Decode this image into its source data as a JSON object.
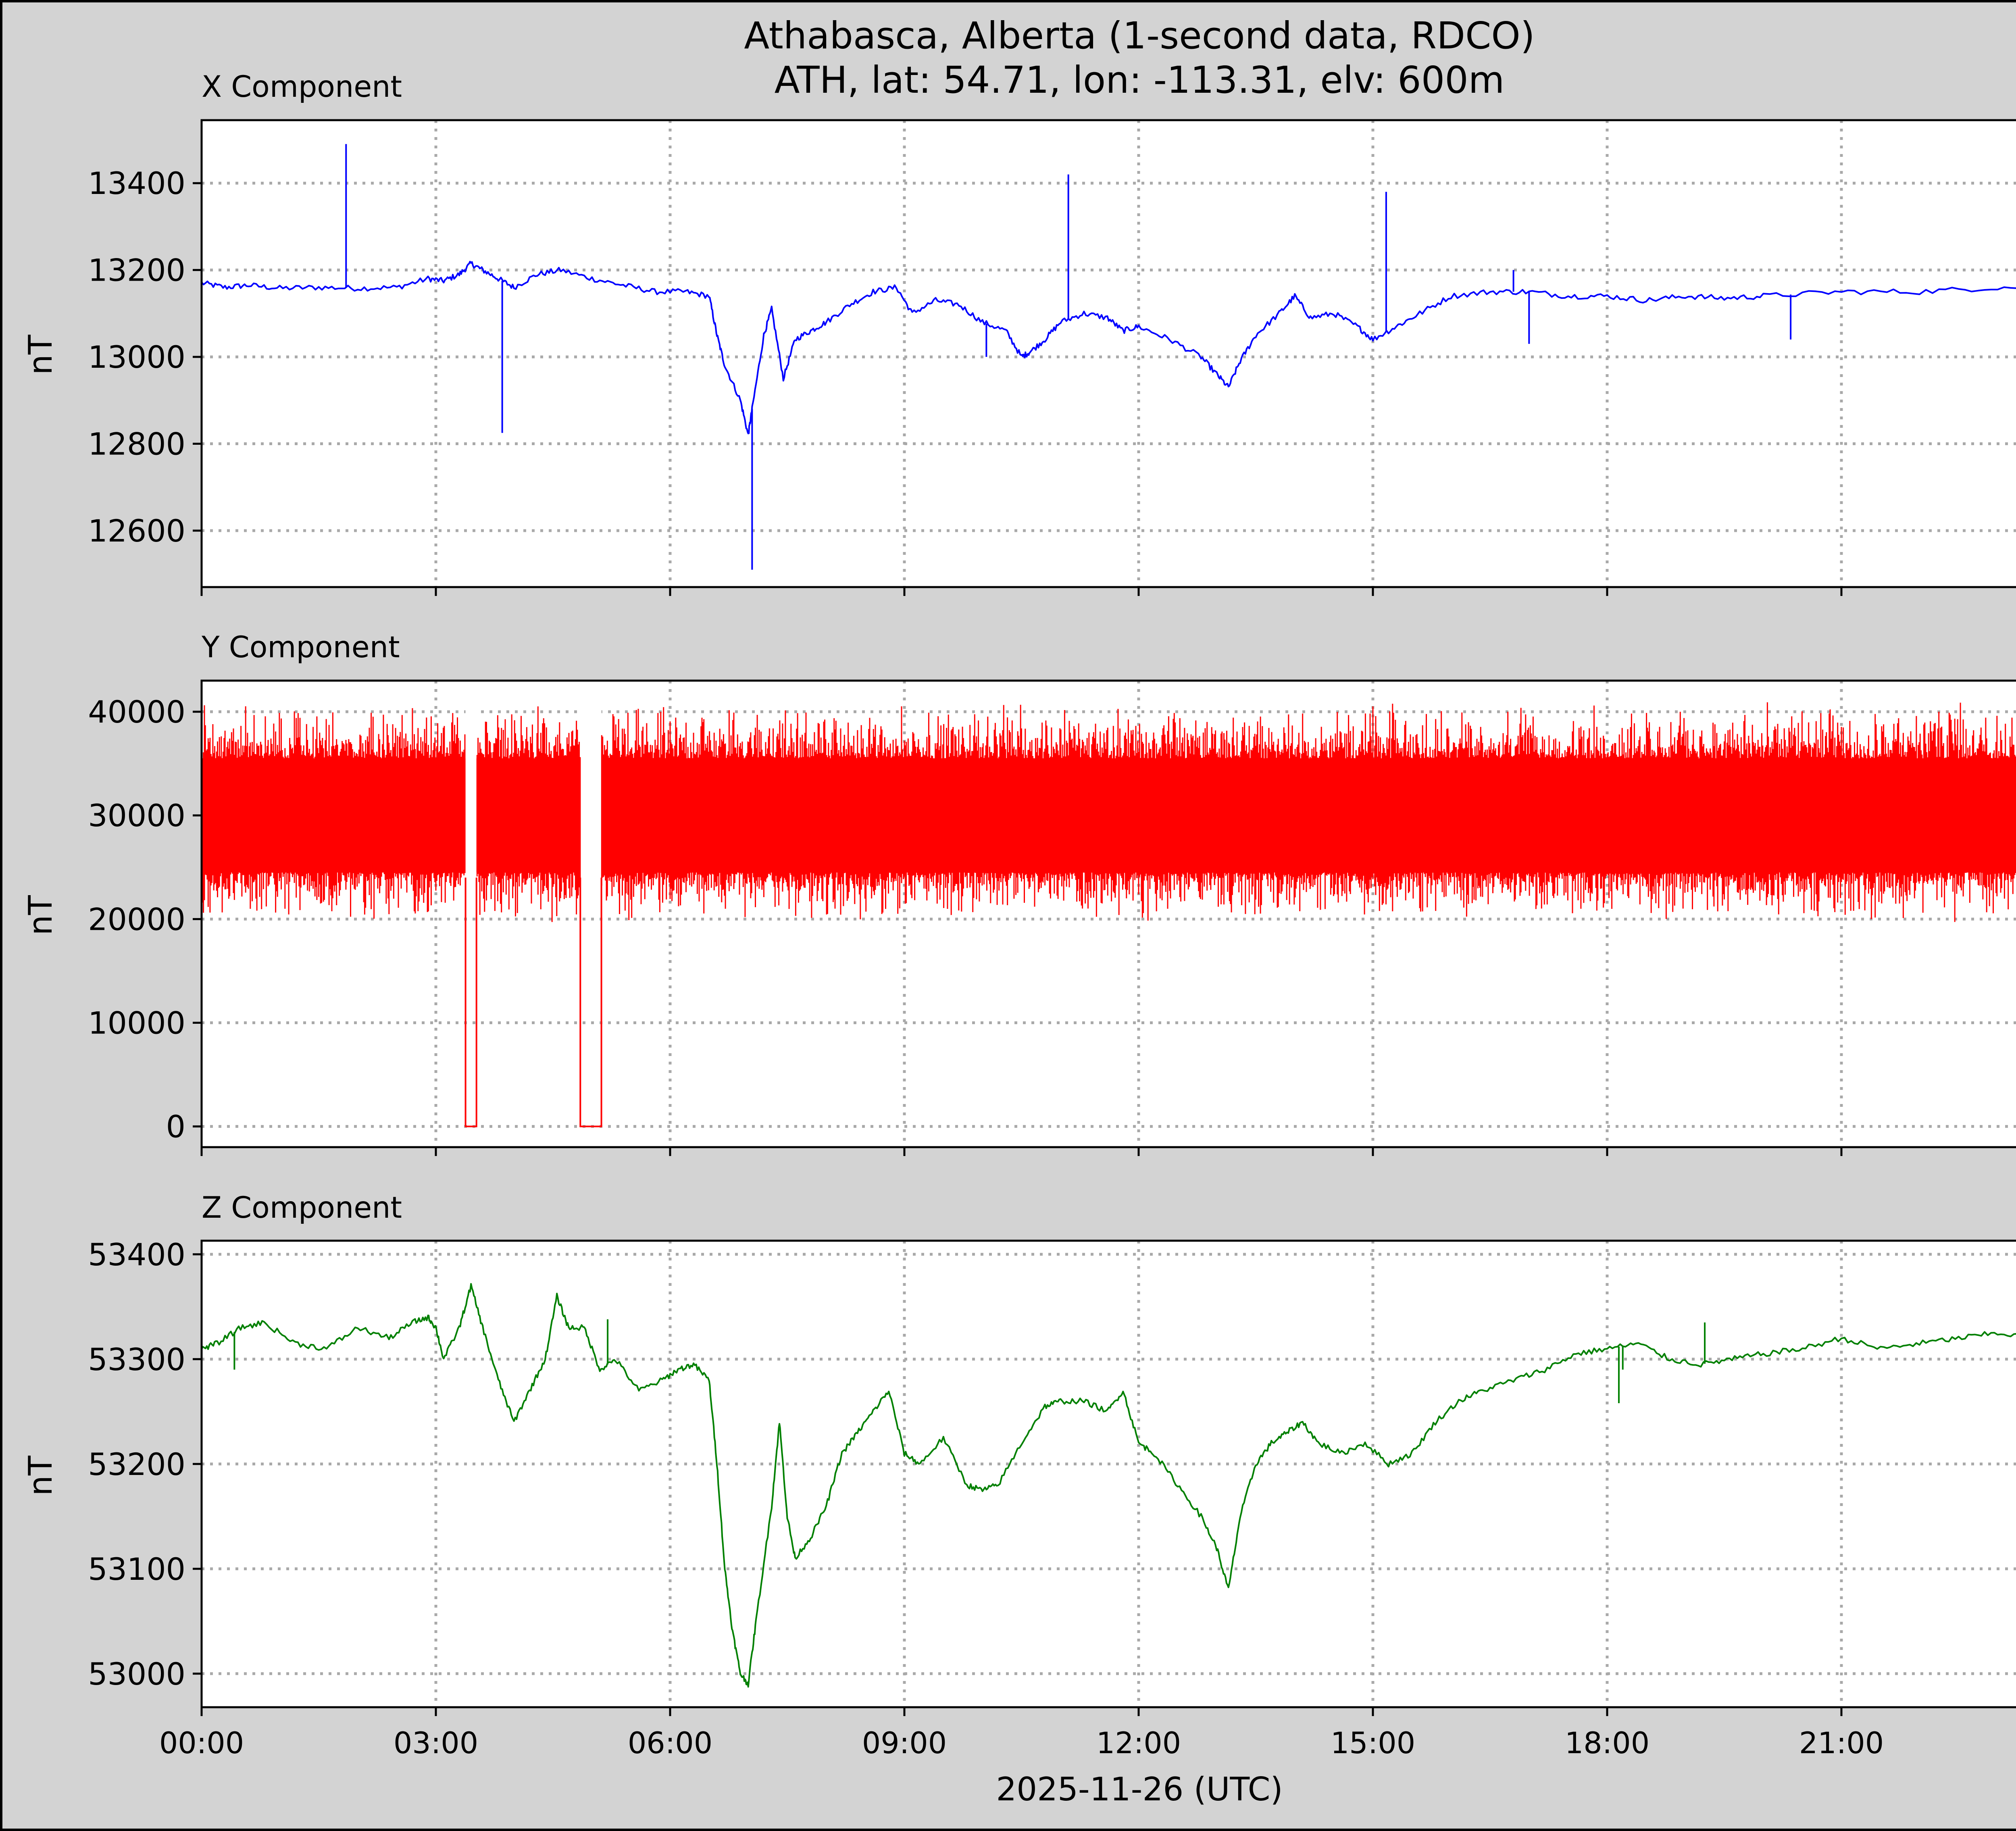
{
  "figure": {
    "title_line1": "Athabasca, Alberta (1-second data, RDCO)",
    "title_line2": "ATH, lat: 54.71, lon: -113.31, elv: 600m",
    "xlabel": "2025-11-26 (UTC)",
    "ylabel": "nT",
    "xticks": [
      "00:00",
      "03:00",
      "06:00",
      "09:00",
      "12:00",
      "15:00",
      "18:00",
      "21:00"
    ]
  },
  "chart_data": [
    {
      "type": "line",
      "title": "X Component",
      "ylabel": "nT",
      "ylim": [
        12470,
        13545
      ],
      "xlim_hours": [
        0,
        24
      ],
      "yticks": [
        12600,
        12800,
        13000,
        13200,
        13400
      ],
      "grid": true,
      "color": "#0000ff",
      "series": [
        {
          "x": [
            0.0,
            0.3,
            0.6,
            1.0,
            1.5,
            2.0,
            2.5,
            2.9,
            3.1,
            3.3,
            3.45,
            3.6,
            3.8,
            4.0,
            4.3,
            4.6,
            5.0,
            5.4,
            5.8,
            6.2,
            6.5,
            6.6,
            6.7,
            6.9,
            7.0,
            7.05,
            7.2,
            7.3,
            7.45,
            7.6,
            7.8,
            8.0,
            8.3,
            8.6,
            8.9,
            9.1,
            9.4,
            9.7,
            10.0,
            10.3,
            10.5,
            10.6,
            10.8,
            11.0,
            11.3,
            11.6,
            11.8,
            12.0,
            12.4,
            12.8,
            13.0,
            13.15,
            13.3,
            13.5,
            13.8,
            14.0,
            14.2,
            14.5,
            14.8,
            15.0,
            15.3,
            15.6,
            16.0,
            16.5,
            17.0,
            17.5,
            18.0,
            18.5,
            19.0,
            19.5,
            20.0,
            21.0,
            22.0,
            23.0,
            24.0
          ],
          "y": [
            13170,
            13160,
            13165,
            13158,
            13160,
            13158,
            13160,
            13180,
            13175,
            13190,
            13215,
            13200,
            13180,
            13160,
            13190,
            13200,
            13180,
            13165,
            13150,
            13150,
            13140,
            13050,
            12980,
            12900,
            12820,
            12880,
            13050,
            13110,
            12950,
            13040,
            13060,
            13080,
            13120,
            13150,
            13160,
            13100,
            13130,
            13120,
            13080,
            13060,
            13000,
            13010,
            13040,
            13080,
            13100,
            13090,
            13060,
            13070,
            13040,
            13000,
            12960,
            12930,
            12990,
            13050,
            13100,
            13140,
            13090,
            13100,
            13070,
            13040,
            13070,
            13100,
            13140,
            13150,
            13150,
            13140,
            13140,
            13130,
            13140,
            13135,
            13140,
            13150,
            13150,
            13160,
            13160
          ]
        }
      ],
      "spikes": [
        {
          "x": 1.85,
          "y": 13490
        },
        {
          "x": 3.85,
          "y": 12825
        },
        {
          "x": 7.05,
          "y": 12510
        },
        {
          "x": 11.1,
          "y": 13420
        },
        {
          "x": 15.17,
          "y": 13380
        },
        {
          "x": 10.05,
          "y": 13000
        },
        {
          "x": 16.8,
          "y": 13200
        },
        {
          "x": 17.0,
          "y": 13030
        },
        {
          "x": 20.35,
          "y": 13040
        }
      ]
    },
    {
      "type": "line",
      "title": "Y Component",
      "ylabel": "nT",
      "ylim": [
        -2000,
        43000
      ],
      "xlim_hours": [
        0,
        24
      ],
      "yticks": [
        0,
        10000,
        20000,
        30000,
        40000
      ],
      "grid": true,
      "color": "#ff0000",
      "series": [
        {
          "name_hidden": "",
          "center": 30000,
          "band_low": 22000,
          "band_high": 36500,
          "peak_high": 41000,
          "peak_low": 19500,
          "dropouts": [
            {
              "start": 3.38,
              "end": 3.52,
              "y": 0
            },
            {
              "start": 4.85,
              "end": 5.12,
              "y": 0
            }
          ]
        }
      ]
    },
    {
      "type": "line",
      "title": "Z Component",
      "ylabel": "nT",
      "ylim": [
        52968,
        53413
      ],
      "xlim_hours": [
        0,
        24
      ],
      "yticks": [
        53000,
        53100,
        53200,
        53300,
        53400
      ],
      "grid": true,
      "color": "#008000",
      "series": [
        {
          "x": [
            0.0,
            0.2,
            0.5,
            0.8,
            1.2,
            1.6,
            2.0,
            2.4,
            2.7,
            2.9,
            3.0,
            3.1,
            3.3,
            3.45,
            3.6,
            3.8,
            4.0,
            4.2,
            4.4,
            4.55,
            4.7,
            4.9,
            5.1,
            5.3,
            5.6,
            5.9,
            6.1,
            6.3,
            6.5,
            6.6,
            6.7,
            6.8,
            6.9,
            7.0,
            7.1,
            7.3,
            7.4,
            7.5,
            7.6,
            7.8,
            8.0,
            8.2,
            8.4,
            8.6,
            8.8,
            9.0,
            9.2,
            9.5,
            9.8,
            10.0,
            10.2,
            10.5,
            10.8,
            11.0,
            11.3,
            11.6,
            11.8,
            12.0,
            12.2,
            12.5,
            12.8,
            13.0,
            13.15,
            13.3,
            13.5,
            13.7,
            13.9,
            14.1,
            14.3,
            14.6,
            14.9,
            15.2,
            15.5,
            15.8,
            16.1,
            16.4,
            16.8,
            17.2,
            17.6,
            18.0,
            18.4,
            18.8,
            19.2,
            19.6,
            20.0,
            20.5,
            21.0,
            21.5,
            22.0,
            22.5,
            23.0,
            23.5,
            24.0
          ],
          "y": [
            53310,
            53315,
            53330,
            53335,
            53315,
            53310,
            53330,
            53320,
            53335,
            53340,
            53330,
            53300,
            53330,
            53370,
            53330,
            53280,
            53240,
            53270,
            53300,
            53360,
            53330,
            53330,
            53290,
            53300,
            53270,
            53280,
            53290,
            53295,
            53280,
            53200,
            53100,
            53040,
            53000,
            52990,
            53050,
            53160,
            53240,
            53150,
            53110,
            53130,
            53160,
            53210,
            53230,
            53250,
            53270,
            53210,
            53200,
            53225,
            53180,
            53175,
            53180,
            53220,
            53255,
            53260,
            53260,
            53250,
            53270,
            53220,
            53210,
            53180,
            53150,
            53120,
            53080,
            53150,
            53200,
            53220,
            53230,
            53240,
            53220,
            53210,
            53220,
            53200,
            53210,
            53240,
            53260,
            53270,
            53280,
            53290,
            53305,
            53310,
            53315,
            53300,
            53295,
            53300,
            53305,
            53310,
            53320,
            53310,
            53315,
            53320,
            53325,
            53320,
            53315
          ]
        }
      ],
      "spikes": [
        {
          "x": 0.42,
          "y": 53290
        },
        {
          "x": 5.2,
          "y": 53338
        },
        {
          "x": 18.15,
          "y": 53258
        },
        {
          "x": 18.2,
          "y": 53290
        },
        {
          "x": 19.25,
          "y": 53335
        }
      ]
    }
  ]
}
